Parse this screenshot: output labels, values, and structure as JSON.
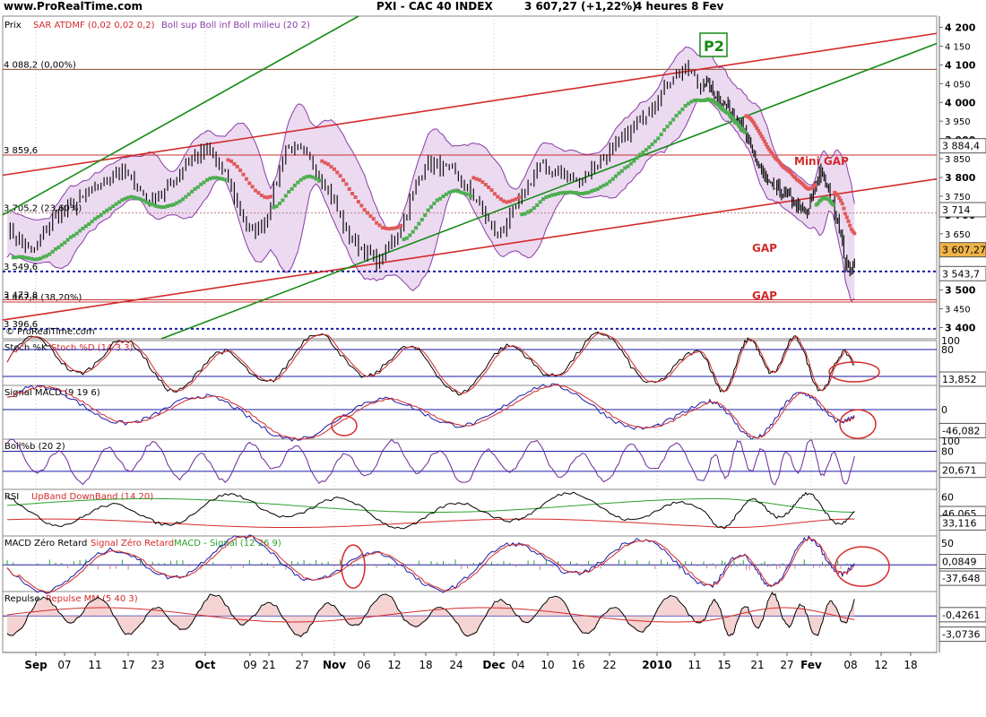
{
  "site": "www.ProRealTime.com",
  "header": {
    "instrument": "PXI - CAC 40 INDEX",
    "price_change": "3 607,27 (+1,22%)",
    "period": "4 heures  8 Fev"
  },
  "main_panel": {
    "legend": {
      "prix": "Prix",
      "sar": "SAR ATDMF (0,02 0,02 0,2)",
      "boll": "Boll sup Boll inf Boll milieu (20 2)"
    },
    "watermark": "© ProRealTime.com",
    "ylim": [
      3370,
      4230
    ],
    "y_ticks": [
      "4 200",
      "4 150",
      "4 100",
      "4 050",
      "4 000",
      "3 950",
      "3 900",
      "3 850",
      "3 800",
      "3 750",
      "3 700",
      "3 650",
      "3 600",
      "3 550",
      "3 500",
      "3 450",
      "3 400"
    ],
    "y_tick_values": [
      4200,
      4150,
      4100,
      4050,
      4000,
      3950,
      3900,
      3850,
      3800,
      3750,
      3700,
      3650,
      3600,
      3550,
      3500,
      3450,
      3400
    ],
    "levels": [
      {
        "label": "4 088,2 (0,00%)",
        "value": 4088.2,
        "color": "#8b4a2b"
      },
      {
        "label": "3 859,6",
        "value": 3859.6,
        "color": "#c43030"
      },
      {
        "label": "3 705,2 (23,60%)",
        "value": 3705.2,
        "color": "#c08080"
      },
      {
        "label": "3 549,6",
        "value": 3549.6,
        "color": "#1a1aa6"
      },
      {
        "label": "3 467,8 (38,20%)",
        "value": 3467.8,
        "color": "#c43030"
      },
      {
        "label": "3 473,8",
        "value": 3473.8,
        "color": "#c43030"
      },
      {
        "label": "3 396,6",
        "value": 3396.6,
        "color": "#1a1aa6"
      }
    ],
    "right_badges": [
      {
        "text": "3 884,4",
        "value": 3884.4,
        "bg": "#ffffff",
        "fg": "#000"
      },
      {
        "text": "3 714",
        "value": 3714,
        "bg": "#ffffff",
        "fg": "#000"
      },
      {
        "text": "3 607,27",
        "value": 3607.27,
        "bg": "#f0b44a",
        "fg": "#000"
      },
      {
        "text": "3 543,7",
        "value": 3543.7,
        "bg": "#ffffff",
        "fg": "#000"
      }
    ],
    "annotations": {
      "p2": "P2",
      "mini_gap": "Mini GAP",
      "gap1": "GAP",
      "gap2": "GAP"
    }
  },
  "panels": [
    {
      "key": "stoch",
      "legend_a": "Stoch %K",
      "legend_b": "Stoch %D (14 3 3)",
      "ticks": [
        {
          "t": "100",
          "y": 0.0
        },
        {
          "t": "80",
          "y": 0.2
        }
      ],
      "badges": [
        {
          "text": "13,852",
          "y": 0.86
        }
      ]
    },
    {
      "key": "macd_sig",
      "legend_a": "Signal MACD (9 19 6)",
      "legend_b": "",
      "ticks": [
        {
          "t": "0",
          "y": 0.45
        }
      ],
      "badges": [
        {
          "text": "-46,082",
          "y": 0.84
        }
      ]
    },
    {
      "key": "boll",
      "legend_a": "Boll%b (20 2)",
      "legend_b": "",
      "ticks": [
        {
          "t": "100",
          "y": 0.04
        },
        {
          "t": "80",
          "y": 0.24
        }
      ],
      "badges": [
        {
          "text": "20,671",
          "y": 0.62
        }
      ]
    },
    {
      "key": "rsi",
      "legend_a": "RSI",
      "legend_b": "UpBand DownBand (14 20)",
      "ticks": [
        {
          "t": "60",
          "y": 0.16
        }
      ],
      "badges": [
        {
          "text": "46,065",
          "y": 0.52
        },
        {
          "text": "33,116",
          "y": 0.72
        }
      ]
    },
    {
      "key": "macd0",
      "legend_a": "MACD Zéro Retard",
      "legend_b": "Signal Zéro Retard",
      "legend_c": "MACD - Signal (12 26 9)",
      "ticks": [
        {
          "t": "50",
          "y": 0.13
        }
      ],
      "badges": [
        {
          "text": "0,0849",
          "y": 0.46
        },
        {
          "text": "-37,648",
          "y": 0.76
        }
      ]
    },
    {
      "key": "repulse",
      "legend_a": "Repulse",
      "legend_b": "Repulse MM (5 40 3)",
      "ticks": [],
      "badges": [
        {
          "text": "-0,4261",
          "y": 0.38
        },
        {
          "text": "-3,0736",
          "y": 0.7
        }
      ]
    }
  ],
  "x_axis": {
    "labels": [
      {
        "t": "Sep",
        "bold": true
      },
      {
        "t": "07"
      },
      {
        "t": "11"
      },
      {
        "t": "17"
      },
      {
        "t": "23"
      },
      {
        "t": "Oct",
        "bold": true
      },
      {
        "t": "09"
      },
      {
        "t": "21"
      },
      {
        "t": "27"
      },
      {
        "t": "Nov",
        "bold": true
      },
      {
        "t": "06"
      },
      {
        "t": "12"
      },
      {
        "t": "18"
      },
      {
        "t": "24"
      },
      {
        "t": "Dec",
        "bold": true
      },
      {
        "t": "04"
      },
      {
        "t": "10"
      },
      {
        "t": "16"
      },
      {
        "t": "22"
      },
      {
        "t": "2010",
        "bold": true
      },
      {
        "t": "11"
      },
      {
        "t": "15"
      },
      {
        "t": "21"
      },
      {
        "t": "27"
      },
      {
        "t": "Fev",
        "bold": true
      },
      {
        "t": "08"
      },
      {
        "t": "12"
      },
      {
        "t": "18"
      }
    ]
  },
  "chart_data": {
    "type": "line",
    "title": "PXI - CAC 40 INDEX",
    "series": [
      {
        "name": "Prix",
        "x": [
          "Sep",
          "Oct",
          "Nov",
          "Dec",
          "2010",
          "Fev"
        ],
        "values": [
          3620,
          3770,
          3590,
          3810,
          4090,
          3607.27
        ]
      }
    ],
    "ylim": [
      3370,
      4230
    ],
    "xlabel": "",
    "ylabel": ""
  },
  "colors": {
    "sar_up": "#4caf50",
    "sar_down": "#e05a5a",
    "boll_fill": "#e9d4ef",
    "boll_line": "#8a3ca8",
    "red_line": "#d42a2a",
    "green_line": "#138a13",
    "dotted_blue": "#1a1aa6",
    "axis": "#9aa8c4"
  }
}
